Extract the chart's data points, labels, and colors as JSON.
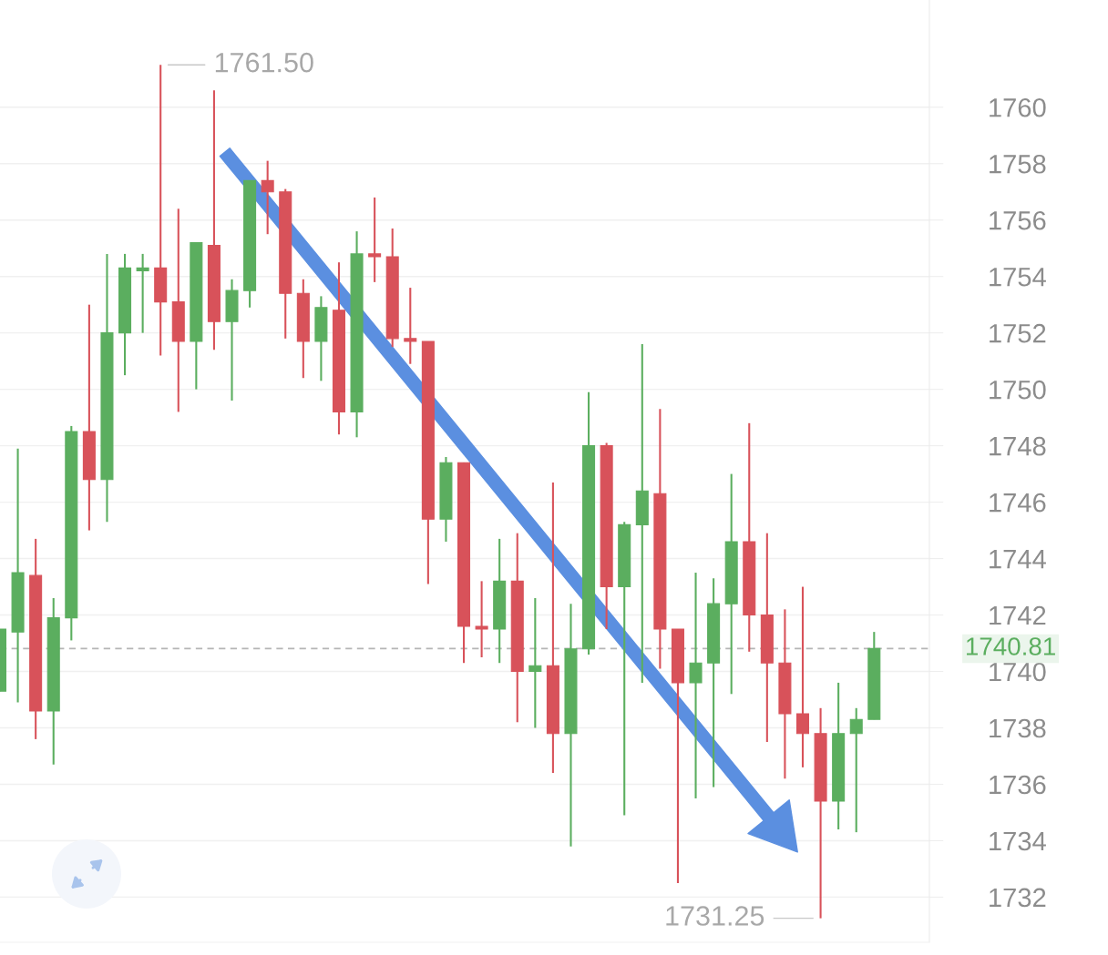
{
  "chart_data": {
    "type": "candlestick",
    "categories": [
      null,
      null,
      null,
      null,
      null,
      null,
      null,
      null,
      null,
      null,
      null,
      null,
      null,
      null,
      null,
      null,
      null,
      null,
      null,
      null,
      null,
      null,
      null,
      null,
      null,
      null,
      null,
      null,
      null,
      null,
      null,
      null,
      null,
      null,
      null,
      null,
      null,
      null,
      null,
      null,
      null,
      null,
      null,
      null,
      null,
      null,
      null,
      null,
      null,
      null
    ],
    "ohlc": [
      [
        1739.3,
        1741.5,
        1739.3,
        1741.5
      ],
      [
        1741.4,
        1747.9,
        1738.9,
        1743.5
      ],
      [
        1743.4,
        1744.7,
        1737.6,
        1738.6
      ],
      [
        1738.6,
        1742.6,
        1736.7,
        1741.9
      ],
      [
        1741.9,
        1748.7,
        1741.1,
        1748.5
      ],
      [
        1748.5,
        1753.0,
        1745.0,
        1746.8
      ],
      [
        1746.8,
        1754.8,
        1745.3,
        1752.0
      ],
      [
        1752.0,
        1754.8,
        1750.5,
        1754.3
      ],
      [
        1754.2,
        1754.8,
        1752.0,
        1754.3
      ],
      [
        1754.3,
        1761.5,
        1751.2,
        1753.1
      ],
      [
        1753.1,
        1756.4,
        1749.2,
        1751.7
      ],
      [
        1751.7,
        1755.2,
        1750.0,
        1755.2
      ],
      [
        1755.1,
        1760.6,
        1751.4,
        1752.4
      ],
      [
        1752.4,
        1753.9,
        1749.6,
        1753.5
      ],
      [
        1753.5,
        1757.4,
        1752.9,
        1757.4
      ],
      [
        1757.4,
        1758.1,
        1755.5,
        1757.0
      ],
      [
        1757.0,
        1757.1,
        1751.8,
        1753.4
      ],
      [
        1753.4,
        1753.9,
        1750.4,
        1751.7
      ],
      [
        1751.7,
        1753.3,
        1750.3,
        1752.9
      ],
      [
        1752.8,
        1754.5,
        1748.4,
        1749.2
      ],
      [
        1749.2,
        1755.6,
        1748.3,
        1754.8
      ],
      [
        1754.8,
        1756.8,
        1753.8,
        1754.7
      ],
      [
        1754.7,
        1755.7,
        1751.5,
        1751.8
      ],
      [
        1751.8,
        1753.6,
        1750.9,
        1751.7
      ],
      [
        1751.7,
        1751.7,
        1743.1,
        1745.4
      ],
      [
        1745.4,
        1747.6,
        1744.6,
        1747.4
      ],
      [
        1747.4,
        1747.4,
        1740.3,
        1741.6
      ],
      [
        1741.6,
        1743.2,
        1740.5,
        1741.5
      ],
      [
        1741.5,
        1744.7,
        1740.3,
        1743.2
      ],
      [
        1743.2,
        1744.9,
        1738.2,
        1740.0
      ],
      [
        1740.0,
        1742.6,
        1738.0,
        1740.2
      ],
      [
        1740.2,
        1746.7,
        1736.4,
        1737.8
      ],
      [
        1737.8,
        1742.4,
        1733.8,
        1740.8
      ],
      [
        1740.8,
        1749.9,
        1740.6,
        1748.0
      ],
      [
        1748.0,
        1748.1,
        1741.5,
        1743.0
      ],
      [
        1743.0,
        1745.3,
        1734.9,
        1745.2
      ],
      [
        1745.2,
        1751.6,
        1739.6,
        1746.4
      ],
      [
        1746.3,
        1749.3,
        1740.1,
        1741.5
      ],
      [
        1741.5,
        1741.5,
        1732.5,
        1739.6
      ],
      [
        1739.6,
        1743.5,
        1735.5,
        1740.3
      ],
      [
        1740.3,
        1743.3,
        1735.9,
        1742.4
      ],
      [
        1742.4,
        1747.0,
        1739.2,
        1744.6
      ],
      [
        1744.6,
        1748.8,
        1740.7,
        1742.0
      ],
      [
        1742.0,
        1744.9,
        1737.5,
        1740.3
      ],
      [
        1740.3,
        1742.2,
        1736.2,
        1738.5
      ],
      [
        1738.5,
        1743.0,
        1736.6,
        1737.8
      ],
      [
        1737.8,
        1738.7,
        1731.25,
        1735.4
      ],
      [
        1735.4,
        1739.6,
        1734.4,
        1737.8
      ],
      [
        1737.8,
        1738.7,
        1734.3,
        1738.3
      ],
      [
        1738.3,
        1741.4,
        1738.3,
        1740.81
      ]
    ],
    "colors": [
      "#5bae5f",
      "#5bae5f",
      "#d8525a",
      "#5bae5f",
      "#5bae5f",
      "#d8525a",
      "#5bae5f",
      "#5bae5f",
      "#5bae5f",
      "#d8525a",
      "#d8525a",
      "#5bae5f",
      "#d8525a",
      "#5bae5f",
      "#5bae5f",
      "#d8525a",
      "#d8525a",
      "#d8525a",
      "#5bae5f",
      "#d8525a",
      "#5bae5f",
      "#d8525a",
      "#d8525a",
      "#d8525a",
      "#d8525a",
      "#5bae5f",
      "#d8525a",
      "#d8525a",
      "#5bae5f",
      "#d8525a",
      "#5bae5f",
      "#d8525a",
      "#5bae5f",
      "#5bae5f",
      "#d8525a",
      "#5bae5f",
      "#5bae5f",
      "#d8525a",
      "#d8525a",
      "#5bae5f",
      "#5bae5f",
      "#5bae5f",
      "#d8525a",
      "#d8525a",
      "#d8525a",
      "#d8525a",
      "#d8525a",
      "#5bae5f",
      "#5bae5f",
      "#5bae5f"
    ],
    "ylim": [
      1730.4,
      1763.8
    ],
    "yticks": [
      1732,
      1734,
      1736,
      1738,
      1740,
      1742,
      1744,
      1746,
      1748,
      1750,
      1752,
      1754,
      1756,
      1758,
      1760
    ],
    "grid": "y",
    "tick_labels": "y",
    "ref_lines": [
      {
        "axis": "y",
        "value": 1740.81,
        "label": "1740.81",
        "color": "#b5b5b5",
        "line_style": "dashed"
      }
    ],
    "annotations": [
      "1761.50",
      "1731.25"
    ]
  }
}
